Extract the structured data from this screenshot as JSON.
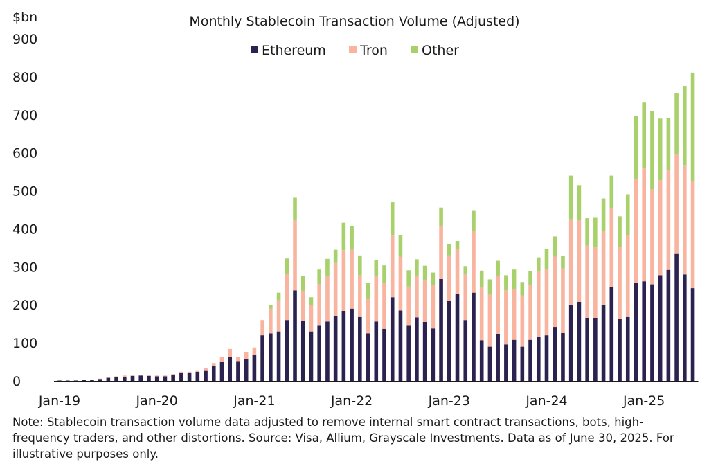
{
  "chart_data": {
    "type": "bar",
    "stacked": true,
    "title": "Monthly Stablecoin Transaction Volume (Adjusted)",
    "ylabel": "$bn",
    "xlabel": "",
    "ylim": [
      0,
      900
    ],
    "yticks": [
      0,
      100,
      200,
      300,
      400,
      500,
      600,
      700,
      800,
      900
    ],
    "xtick_labels": [
      "Jan-19",
      "Jan-20",
      "Jan-21",
      "Jan-22",
      "Jan-23",
      "Jan-24",
      "Jan-25"
    ],
    "grid": false,
    "legend": "top-center",
    "start_month": "Jan-19",
    "colors": {
      "Ethereum": "#2b2250",
      "Tron": "#f8b49e",
      "Other": "#a9d16b"
    },
    "series": [
      {
        "name": "Ethereum",
        "values": [
          1,
          1,
          1,
          2,
          3,
          5,
          8,
          10,
          11,
          13,
          14,
          13,
          12,
          12,
          16,
          21,
          21,
          24,
          28,
          40,
          50,
          62,
          52,
          58,
          68,
          120,
          125,
          130,
          160,
          238,
          157,
          130,
          145,
          156,
          170,
          184,
          190,
          168,
          125,
          156,
          137,
          220,
          185,
          145,
          167,
          155,
          138,
          268,
          210,
          228,
          160,
          232,
          107,
          90,
          124,
          96,
          108,
          90,
          108,
          115,
          120,
          142,
          126,
          200,
          208,
          166,
          166,
          200,
          248,
          163,
          168,
          258,
          262,
          254,
          278,
          292,
          334,
          280,
          244
        ]
      },
      {
        "name": "Tron",
        "values": [
          0,
          0,
          0,
          0,
          0,
          1,
          3,
          2,
          3,
          2,
          2,
          3,
          2,
          2,
          2,
          3,
          3,
          4,
          5,
          7,
          12,
          22,
          10,
          17,
          20,
          40,
          65,
          82,
          122,
          184,
          80,
          70,
          110,
          120,
          140,
          160,
          155,
          110,
          90,
          120,
          120,
          162,
          142,
          103,
          110,
          110,
          115,
          140,
          120,
          120,
          120,
          163,
          140,
          137,
          152,
          142,
          133,
          135,
          145,
          173,
          175,
          185,
          170,
          225,
          215,
          190,
          185,
          195,
          207,
          190,
          215,
          273,
          297,
          250,
          250,
          262,
          262,
          288,
          282
        ]
      },
      {
        "name": "Other",
        "values": [
          0,
          0,
          0,
          0,
          0,
          0,
          0,
          0,
          0,
          0,
          0,
          0,
          0,
          0,
          0,
          0,
          0,
          0,
          0,
          0,
          0,
          0,
          0,
          0,
          0,
          0,
          10,
          20,
          40,
          60,
          40,
          20,
          38,
          45,
          35,
          72,
          62,
          52,
          42,
          42,
          47,
          88,
          57,
          43,
          43,
          38,
          32,
          48,
          29,
          20,
          22,
          54,
          43,
          40,
          40,
          40,
          52,
          35,
          36,
          37,
          52,
          53,
          32,
          115,
          92,
          72,
          78,
          85,
          85,
          80,
          108,
          165,
          173,
          205,
          162,
          137,
          160,
          208,
          285
        ]
      }
    ]
  },
  "note": "Note: Stablecoin transaction volume data adjusted to remove internal smart contract transactions, bots, high-frequency traders, and other distortions. Source: Visa, Allium, Grayscale Investments. Data as of June 30, 2025. For illustrative purposes only."
}
